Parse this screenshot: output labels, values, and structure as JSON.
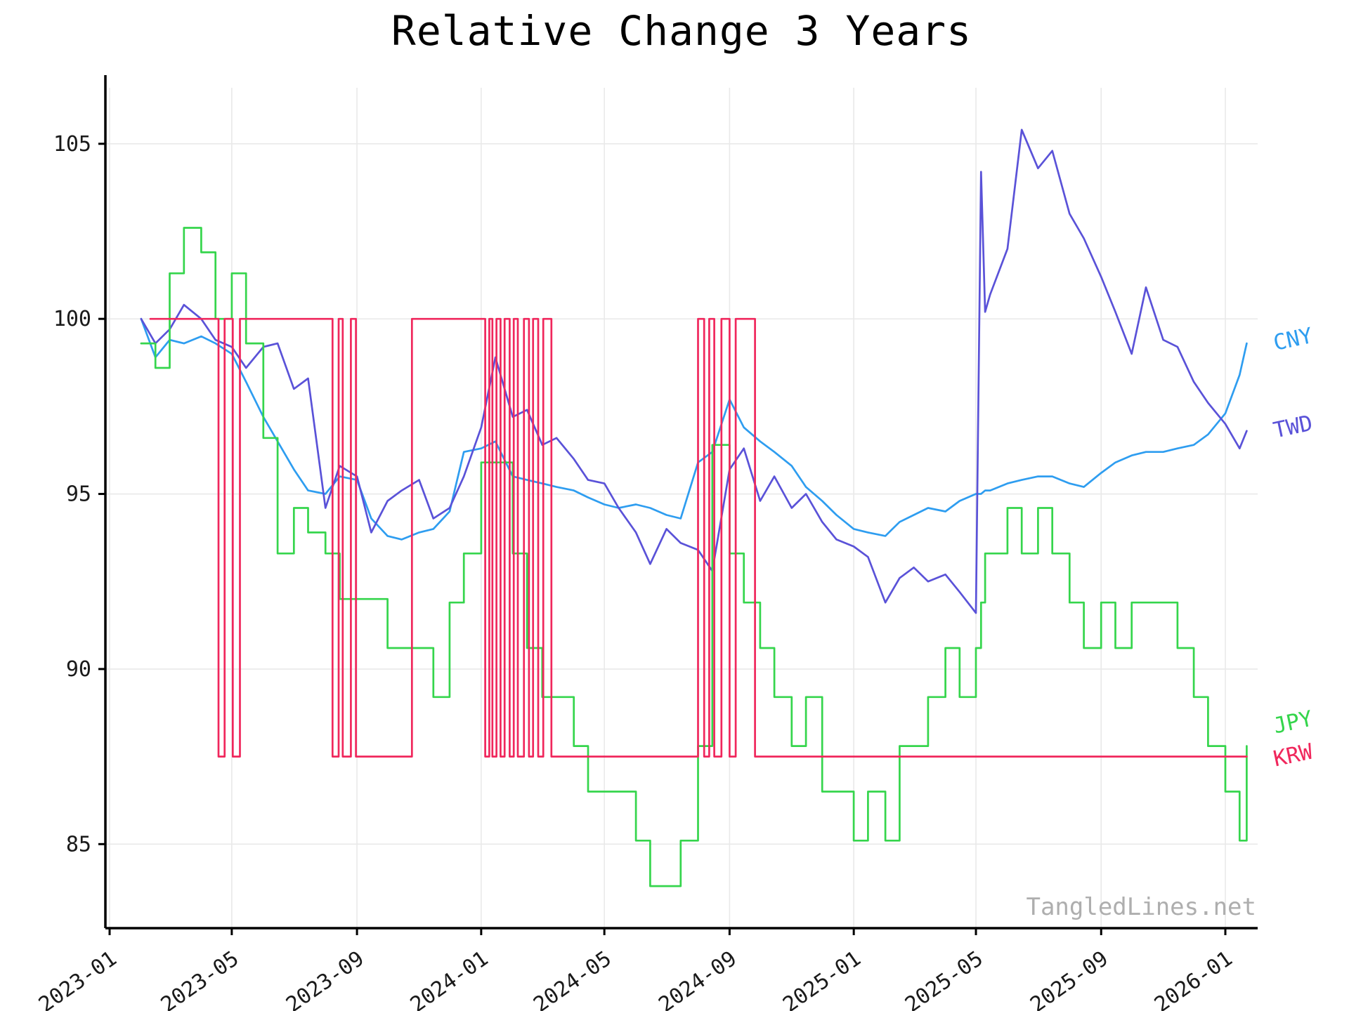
{
  "title": "Relative Change 3 Years",
  "watermark": "TangledLines.net",
  "colors": {
    "cny": "#2e9df0",
    "twd": "#5a52d8",
    "jpy": "#35d54c",
    "krw": "#f0275c",
    "grid": "#e9e9e9",
    "axis": "#000000",
    "tick_label": "#1a1a1a",
    "watermark": "#aeaeae"
  },
  "chart_data": {
    "type": "line",
    "title": "Relative Change 3 Years",
    "xlabel": "",
    "ylabel": "",
    "ylim": [
      82.6,
      106.6
    ],
    "yticks": [
      85,
      90,
      95,
      100,
      105
    ],
    "xticks": [
      "2023-01",
      "2023-05",
      "2023-09",
      "2024-01",
      "2024-05",
      "2024-09",
      "2025-01",
      "2025-05",
      "2025-09",
      "2026-01"
    ],
    "grid": true,
    "legend_position": "right-edge-labels",
    "x": [
      "2023-02-01",
      "2023-02-15",
      "2023-03-01",
      "2023-03-15",
      "2023-04-01",
      "2023-04-15",
      "2023-05-01",
      "2023-05-15",
      "2023-06-01",
      "2023-06-15",
      "2023-07-01",
      "2023-07-15",
      "2023-08-01",
      "2023-08-15",
      "2023-09-01",
      "2023-09-15",
      "2023-10-01",
      "2023-10-15",
      "2023-11-01",
      "2023-11-15",
      "2023-12-01",
      "2023-12-15",
      "2024-01-01",
      "2024-01-15",
      "2024-02-01",
      "2024-02-15",
      "2024-03-01",
      "2024-03-15",
      "2024-04-01",
      "2024-04-15",
      "2024-05-01",
      "2024-05-15",
      "2024-06-01",
      "2024-06-15",
      "2024-07-01",
      "2024-07-15",
      "2024-08-01",
      "2024-08-15",
      "2024-09-01",
      "2024-09-15",
      "2024-10-01",
      "2024-10-15",
      "2024-11-01",
      "2024-11-15",
      "2024-12-01",
      "2024-12-15",
      "2025-01-01",
      "2025-01-15",
      "2025-02-01",
      "2025-02-15",
      "2025-03-01",
      "2025-03-15",
      "2025-04-01",
      "2025-04-15",
      "2025-05-01",
      "2025-05-06",
      "2025-05-10",
      "2025-05-15",
      "2025-06-01",
      "2025-06-15",
      "2025-07-01",
      "2025-07-15",
      "2025-08-01",
      "2025-08-15",
      "2025-09-01",
      "2025-09-15",
      "2025-10-01",
      "2025-10-15",
      "2025-11-01",
      "2025-11-15",
      "2025-12-01",
      "2025-12-15",
      "2026-01-01",
      "2026-01-15",
      "2026-01-22"
    ],
    "series": [
      {
        "name": "CNY",
        "color": "#2e9df0",
        "style": "line",
        "values": [
          100.0,
          98.9,
          99.4,
          99.3,
          99.5,
          99.3,
          99.0,
          98.2,
          97.2,
          96.5,
          95.7,
          95.1,
          95.0,
          95.5,
          95.4,
          94.3,
          93.8,
          93.7,
          93.9,
          94.0,
          94.5,
          96.2,
          96.3,
          96.5,
          95.5,
          95.4,
          95.3,
          95.2,
          95.1,
          94.9,
          94.7,
          94.6,
          94.7,
          94.6,
          94.4,
          94.3,
          95.9,
          96.2,
          97.7,
          96.9,
          96.5,
          96.2,
          95.8,
          95.2,
          94.8,
          94.4,
          94.0,
          93.9,
          93.8,
          94.2,
          94.4,
          94.6,
          94.5,
          94.8,
          95.0,
          95.0,
          95.1,
          95.1,
          95.3,
          95.4,
          95.5,
          95.5,
          95.3,
          95.2,
          95.6,
          95.9,
          96.1,
          96.2,
          96.2,
          96.3,
          96.4,
          96.7,
          97.3,
          98.4,
          99.3
        ]
      },
      {
        "name": "TWD",
        "color": "#5a52d8",
        "style": "line",
        "values": [
          100.0,
          99.3,
          99.7,
          100.4,
          100.0,
          99.4,
          99.2,
          98.6,
          99.2,
          99.3,
          98.0,
          98.3,
          94.6,
          95.8,
          95.5,
          93.9,
          94.8,
          95.1,
          95.4,
          94.3,
          94.6,
          95.5,
          96.9,
          98.9,
          97.2,
          97.4,
          96.4,
          96.6,
          96.0,
          95.4,
          95.3,
          94.6,
          93.9,
          93.0,
          94.0,
          93.6,
          93.4,
          92.8,
          95.7,
          96.3,
          94.8,
          95.5,
          94.6,
          95.0,
          94.2,
          93.7,
          93.5,
          93.2,
          91.9,
          92.6,
          92.9,
          92.5,
          92.7,
          92.2,
          91.6,
          104.2,
          100.2,
          100.7,
          102.0,
          105.4,
          104.3,
          104.8,
          103.0,
          102.3,
          101.2,
          100.2,
          99.0,
          100.9,
          99.4,
          99.2,
          98.2,
          97.6,
          97.0,
          96.3,
          96.8
        ]
      },
      {
        "name": "JPY",
        "color": "#35d54c",
        "style": "step",
        "values": [
          99.3,
          98.6,
          101.3,
          102.6,
          101.9,
          100.0,
          101.3,
          99.3,
          96.6,
          93.3,
          94.6,
          93.9,
          93.3,
          92.0,
          92.0,
          92.0,
          90.6,
          90.6,
          90.6,
          89.2,
          91.9,
          93.3,
          95.9,
          95.9,
          93.3,
          90.6,
          89.2,
          89.2,
          87.8,
          86.5,
          86.5,
          86.5,
          85.1,
          83.8,
          83.8,
          85.1,
          87.8,
          96.4,
          93.3,
          91.9,
          90.6,
          89.2,
          87.8,
          89.2,
          86.5,
          86.5,
          85.1,
          86.5,
          85.1,
          87.8,
          87.8,
          89.2,
          90.6,
          89.2,
          90.6,
          91.9,
          93.3,
          93.3,
          94.6,
          93.3,
          94.6,
          93.3,
          91.9,
          90.6,
          91.9,
          90.6,
          91.9,
          91.9,
          91.9,
          90.6,
          89.2,
          87.8,
          86.5,
          85.1,
          87.8
        ]
      },
      {
        "name": "KRW",
        "color": "#f0275c",
        "style": "step",
        "points": [
          [
            "2023-02-10",
            100
          ],
          [
            "2023-04-18",
            87.5
          ],
          [
            "2023-04-24",
            100
          ],
          [
            "2023-05-02",
            87.5
          ],
          [
            "2023-05-09",
            100
          ],
          [
            "2023-08-08",
            87.5
          ],
          [
            "2023-08-14",
            100
          ],
          [
            "2023-08-18",
            87.5
          ],
          [
            "2023-08-26",
            100
          ],
          [
            "2023-08-31",
            87.5
          ],
          [
            "2023-10-25",
            100
          ],
          [
            "2024-01-05",
            87.5
          ],
          [
            "2024-01-09",
            100
          ],
          [
            "2024-01-12",
            87.5
          ],
          [
            "2024-01-16",
            100
          ],
          [
            "2024-01-20",
            87.5
          ],
          [
            "2024-01-24",
            100
          ],
          [
            "2024-01-29",
            87.5
          ],
          [
            "2024-02-02",
            100
          ],
          [
            "2024-02-06",
            87.5
          ],
          [
            "2024-02-12",
            100
          ],
          [
            "2024-02-17",
            87.5
          ],
          [
            "2024-02-21",
            100
          ],
          [
            "2024-02-26",
            87.5
          ],
          [
            "2024-03-02",
            100
          ],
          [
            "2024-03-10",
            87.5
          ],
          [
            "2024-08-01",
            100
          ],
          [
            "2024-08-07",
            87.5
          ],
          [
            "2024-08-12",
            100
          ],
          [
            "2024-08-17",
            87.5
          ],
          [
            "2024-08-24",
            100
          ],
          [
            "2024-09-01",
            87.5
          ],
          [
            "2024-09-07",
            100
          ],
          [
            "2024-09-26",
            87.5
          ],
          [
            "2026-01-22",
            87.5
          ]
        ]
      }
    ]
  }
}
